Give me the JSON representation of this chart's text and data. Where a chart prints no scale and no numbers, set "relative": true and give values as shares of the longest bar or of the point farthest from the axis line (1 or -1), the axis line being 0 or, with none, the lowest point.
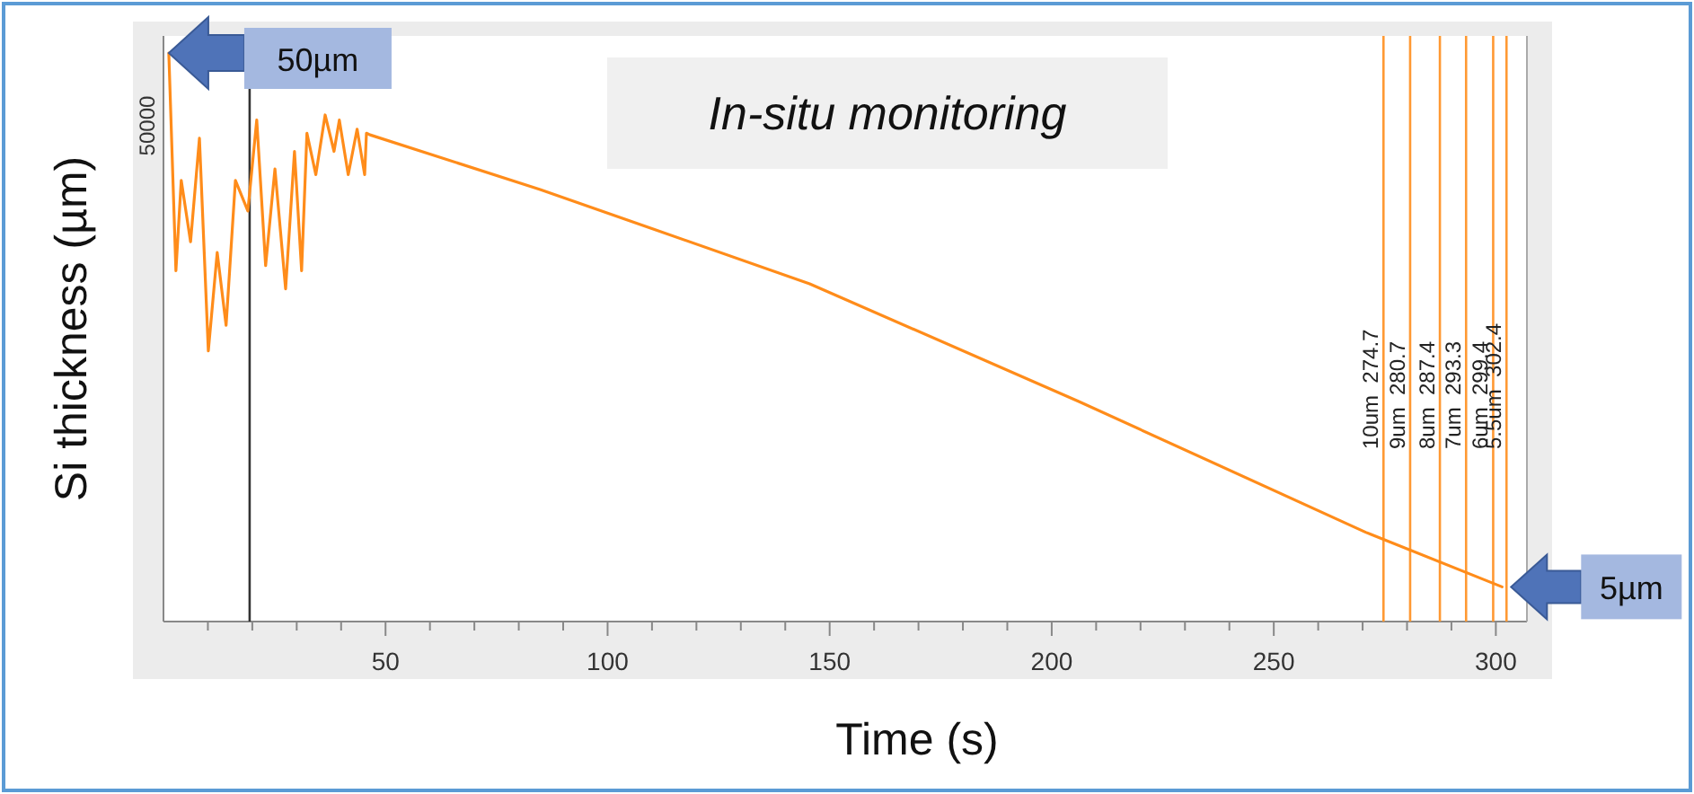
{
  "chart_data": {
    "type": "line",
    "title": "In-situ monitoring",
    "xlabel": "Time (s)",
    "ylabel": "Si thickness (µm)",
    "relative": true,
    "x": [
      1.2,
      2.8,
      4.0,
      6.1,
      8.1,
      10.1,
      12.1,
      14.1,
      16.2,
      19.0,
      21.0,
      23.0,
      25.1,
      27.5,
      29.5,
      31.1,
      32.3,
      34.3,
      36.4,
      38.4,
      39.6,
      41.6,
      43.6,
      45.3,
      45.7,
      46.5,
      84.8,
      145.5,
      206.1,
      270.7,
      301.4
    ],
    "series": [
      {
        "color": "#ff8c1a",
        "values": [
          1.0,
          0.617,
          0.776,
          0.668,
          0.85,
          0.476,
          0.649,
          0.521,
          0.776,
          0.722,
          0.882,
          0.626,
          0.796,
          0.585,
          0.827,
          0.617,
          0.859,
          0.786,
          0.891,
          0.827,
          0.882,
          0.786,
          0.866,
          0.786,
          0.859,
          0.856,
          0.76,
          0.594,
          0.387,
          0.157,
          0.061
        ]
      }
    ],
    "xlim": [
      0,
      307
    ],
    "xticks": [
      {
        "value": 10,
        "label": null
      },
      {
        "value": 20,
        "label": null
      },
      {
        "value": 30,
        "label": null
      },
      {
        "value": 40,
        "label": null
      },
      50,
      {
        "value": 60,
        "label": null
      },
      {
        "value": 70,
        "label": null
      },
      {
        "value": 80,
        "label": null
      },
      {
        "value": 90,
        "label": null
      },
      100,
      {
        "value": 110,
        "label": null
      },
      {
        "value": 120,
        "label": null
      },
      {
        "value": 130,
        "label": null
      },
      {
        "value": 140,
        "label": null
      },
      150,
      {
        "value": 160,
        "label": null
      },
      {
        "value": 170,
        "label": null
      },
      {
        "value": 180,
        "label": null
      },
      {
        "value": 190,
        "label": null
      },
      200,
      {
        "value": 210,
        "label": null
      },
      {
        "value": 220,
        "label": null
      },
      {
        "value": 230,
        "label": null
      },
      {
        "value": 240,
        "label": null
      },
      250,
      {
        "value": 260,
        "label": null
      },
      {
        "value": 270,
        "label": null
      },
      {
        "value": 280,
        "label": null
      },
      {
        "value": 290,
        "label": null
      },
      300
    ],
    "ref_lines": [
      {
        "axis": "x",
        "value": 19.4,
        "label": null,
        "color": "#333333"
      },
      {
        "axis": "x",
        "value": 274.7,
        "label": "10um  274.7",
        "color": "#ff9933"
      },
      {
        "axis": "x",
        "value": 280.7,
        "label": "9um  280.7",
        "color": "#ff9933"
      },
      {
        "axis": "x",
        "value": 287.4,
        "label": "8um  287.4",
        "color": "#ff9933"
      },
      {
        "axis": "x",
        "value": 293.3,
        "label": "7um  293.3",
        "color": "#ff9933"
      },
      {
        "axis": "x",
        "value": 299.4,
        "label": "6um  299.4",
        "color": "#ff9933"
      },
      {
        "axis": "x",
        "value": 302.4,
        "label": "5.5um  302.4",
        "color": "#ff9933"
      }
    ],
    "annotations": [
      "50000",
      "50µm",
      "5µm"
    ],
    "grid": false,
    "marker": "none",
    "line_style": "solid"
  }
}
